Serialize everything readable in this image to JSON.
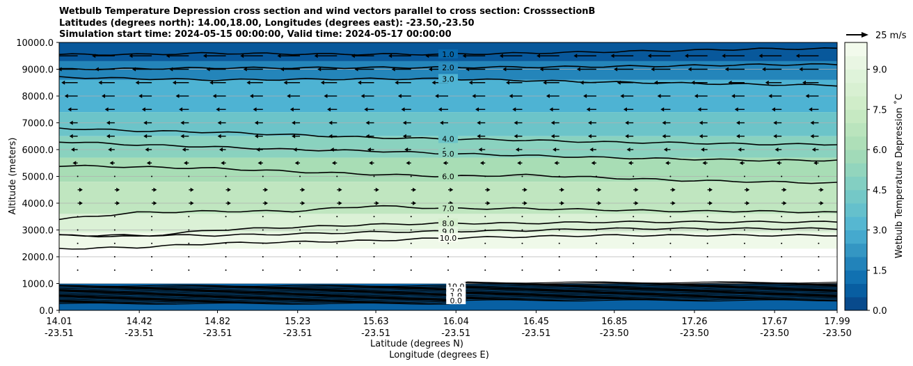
{
  "chart_data": {
    "type": "heatmap",
    "title_lines": [
      "Wetbulb Temperature Depression cross section and wind vectors parallel to cross section: CrosssectionB",
      "Latitudes (degrees north): 14.00,18.00, Longitudes (degrees east): -23.50,-23.50",
      "Simulation start time: 2024-05-15 00:00:00, Valid time: 2024-05-17 00:00:00"
    ],
    "xlabel_lat": "Latitude (degrees N)",
    "xlabel_lon": "Longitude (degrees E)",
    "ylabel": "Altitude (meters)",
    "ylim": [
      0,
      10000
    ],
    "x_ticks": [
      {
        "lat": "14.01",
        "lon": "-23.51",
        "value": 14.01
      },
      {
        "lat": "14.42",
        "lon": "-23.51",
        "value": 14.42
      },
      {
        "lat": "14.82",
        "lon": "-23.51",
        "value": 14.82
      },
      {
        "lat": "15.23",
        "lon": "-23.51",
        "value": 15.23
      },
      {
        "lat": "15.63",
        "lon": "-23.51",
        "value": 15.63
      },
      {
        "lat": "16.04",
        "lon": "-23.51",
        "value": 16.04
      },
      {
        "lat": "16.45",
        "lon": "-23.51",
        "value": 16.45
      },
      {
        "lat": "16.85",
        "lon": "-23.50",
        "value": 16.85
      },
      {
        "lat": "17.26",
        "lon": "-23.50",
        "value": 17.26
      },
      {
        "lat": "17.67",
        "lon": "-23.50",
        "value": 17.67
      },
      {
        "lat": "17.99",
        "lon": "-23.50",
        "value": 17.99
      }
    ],
    "y_ticks": [
      "0.0",
      "1000.0",
      "2000.0",
      "3000.0",
      "4000.0",
      "5000.0",
      "6000.0",
      "7000.0",
      "8000.0",
      "9000.0",
      "10000.0"
    ],
    "y_tick_values": [
      0,
      1000,
      2000,
      3000,
      4000,
      5000,
      6000,
      7000,
      8000,
      9000,
      10000
    ],
    "colorbar": {
      "label": "Wetbulb Temperature Depression ˚C",
      "range": [
        0,
        10
      ],
      "ticks": [
        "0.0",
        "1.5",
        "3.0",
        "4.5",
        "6.0",
        "7.5",
        "9.0"
      ],
      "tick_values": [
        0,
        1.5,
        3.0,
        4.5,
        6.0,
        7.5,
        9.0
      ]
    },
    "quiver_key": "25 m/s",
    "contour_levels": [
      {
        "value": 1.0,
        "label": "1.0",
        "alt": [
          9550,
          9550,
          9600,
          9570,
          9560,
          9560,
          9600,
          9650,
          9700,
          9760,
          9770
        ]
      },
      {
        "value": 2.0,
        "label": "2.0",
        "alt": [
          9000,
          9020,
          9050,
          9050,
          9060,
          9070,
          9080,
          9100,
          9130,
          9170,
          9180
        ]
      },
      {
        "value": 3.0,
        "label": "3.0",
        "alt": [
          8700,
          8650,
          8600,
          8620,
          8640,
          8640,
          8580,
          8520,
          8480,
          8430,
          8400
        ]
      },
      {
        "value": 4.0,
        "label": "4.0",
        "alt": [
          6800,
          6700,
          6650,
          6550,
          6450,
          6400,
          6350,
          6280,
          6250,
          6200,
          6200
        ]
      },
      {
        "value": 5.0,
        "label": "5.0",
        "alt": [
          6300,
          6180,
          6100,
          6000,
          5950,
          5850,
          5780,
          5700,
          5650,
          5600,
          5600
        ]
      },
      {
        "value": 6.0,
        "label": "6.0",
        "alt": [
          5400,
          5350,
          5300,
          5180,
          5080,
          5000,
          5050,
          4950,
          4850,
          4800,
          4750
        ]
      },
      {
        "value": 7.0,
        "label": "7.0",
        "alt": [
          3400,
          3650,
          3700,
          3700,
          3900,
          3800,
          3800,
          3750,
          3700,
          3700,
          3650
        ]
      },
      {
        "value": 8.0,
        "label": "8.0",
        "alt": [
          2800,
          2750,
          3000,
          3100,
          3200,
          3250,
          3250,
          3300,
          3300,
          3300,
          3300
        ]
      },
      {
        "value": 9.0,
        "label": "9.0",
        "alt": [
          2800,
          2800,
          2800,
          2850,
          2920,
          2950,
          2980,
          3050,
          3050,
          3050,
          3050
        ]
      },
      {
        "value": 10.0,
        "label": "10.0",
        "alt": [
          2300,
          2350,
          2500,
          2550,
          2600,
          2700,
          2750,
          2800,
          2800,
          2800,
          2800
        ]
      }
    ],
    "low_level_labels": [
      "10.0",
      "2.0",
      "1.0",
      "0.0"
    ],
    "fill_bands": [
      {
        "top": 10000,
        "bottom": 9300,
        "value": 0.6
      },
      {
        "top": 9300,
        "bottom": 8600,
        "value": 1.8
      },
      {
        "top": 8600,
        "bottom": 7400,
        "value": 3.0
      },
      {
        "top": 7400,
        "bottom": 6500,
        "value": 4.0
      },
      {
        "top": 6500,
        "bottom": 5700,
        "value": 5.0
      },
      {
        "top": 5700,
        "bottom": 4800,
        "value": 6.0
      },
      {
        "top": 4800,
        "bottom": 3600,
        "value": 7.0
      },
      {
        "top": 3600,
        "bottom": 2900,
        "value": 8.5
      },
      {
        "top": 2900,
        "bottom": 2300,
        "value": 9.6
      },
      {
        "top": 2300,
        "bottom": 1000,
        "value": 10.0
      },
      {
        "top": 1000,
        "bottom": 0,
        "value": 0.8
      }
    ],
    "wind_rows": [
      {
        "alt": 9500,
        "u": -12
      },
      {
        "alt": 9000,
        "u": -10
      },
      {
        "alt": 8500,
        "u": -8
      },
      {
        "alt": 8000,
        "u": -6
      },
      {
        "alt": 7500,
        "u": -4
      },
      {
        "alt": 7000,
        "u": -3
      },
      {
        "alt": 6500,
        "u": -3
      },
      {
        "alt": 6000,
        "u": -2
      },
      {
        "alt": 5500,
        "u": -1
      },
      {
        "alt": 5000,
        "u": 0.5
      },
      {
        "alt": 4500,
        "u": 1
      },
      {
        "alt": 4000,
        "u": 1
      },
      {
        "alt": 3500,
        "u": 0.5
      },
      {
        "alt": 3000,
        "u": 0.3
      },
      {
        "alt": 2500,
        "u": 0.3
      },
      {
        "alt": 2000,
        "u": 0.2
      },
      {
        "alt": 1500,
        "u": 0.2
      }
    ]
  }
}
